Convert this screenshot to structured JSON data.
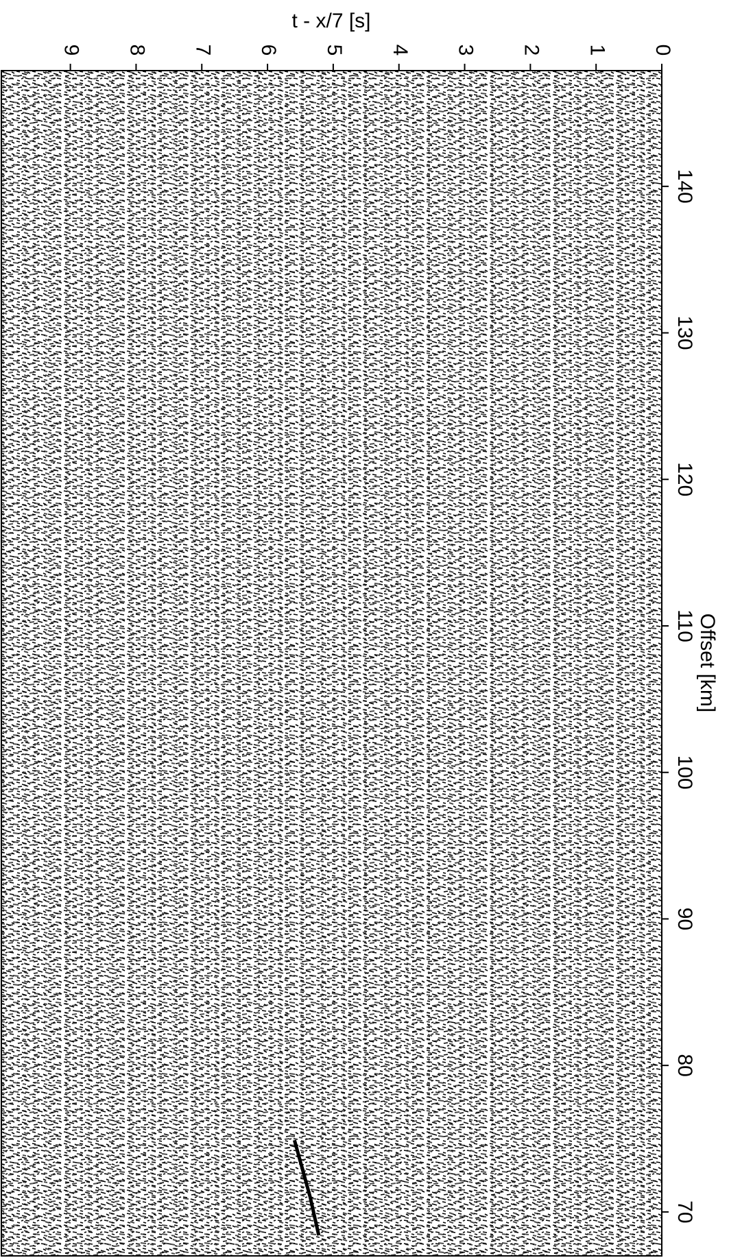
{
  "chart_data": {
    "type": "line",
    "title": "t - x/7 [s]",
    "xlabel": "Offset [km]",
    "x": [
      68.4,
      71.0,
      74.9
    ],
    "values": [
      5.22,
      5.35,
      5.59
    ],
    "color": "#000000",
    "xlim": [
      67.0,
      147.9
    ],
    "xticks": [
      70,
      80,
      90,
      100,
      110,
      120,
      130,
      140
    ],
    "ylim": [
      0,
      10.05
    ],
    "yticks": [
      0,
      1,
      2,
      3,
      4,
      5,
      6,
      7,
      8,
      9
    ]
  }
}
